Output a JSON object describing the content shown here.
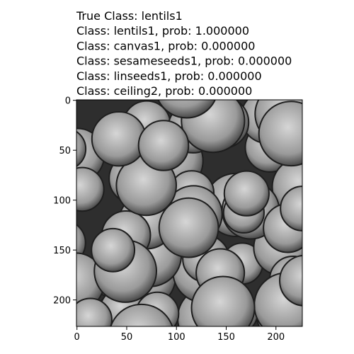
{
  "chart_data": {
    "type": "image",
    "title": [
      "True Class: lentils1",
      "Class: lentils1, prob: 1.000000",
      "Class: canvas1, prob: 0.000000",
      "Class: sesameseeds1, prob: 0.000000",
      "Class: linseeds1, prob: 0.000000",
      "Class: ceiling2, prob: 0.000000"
    ],
    "xlim": [
      -0.5,
      226.5
    ],
    "ylim": [
      226.5,
      -0.5
    ],
    "xticks": [
      0,
      50,
      100,
      150,
      200
    ],
    "yticks": [
      0,
      50,
      100,
      150,
      200
    ]
  }
}
